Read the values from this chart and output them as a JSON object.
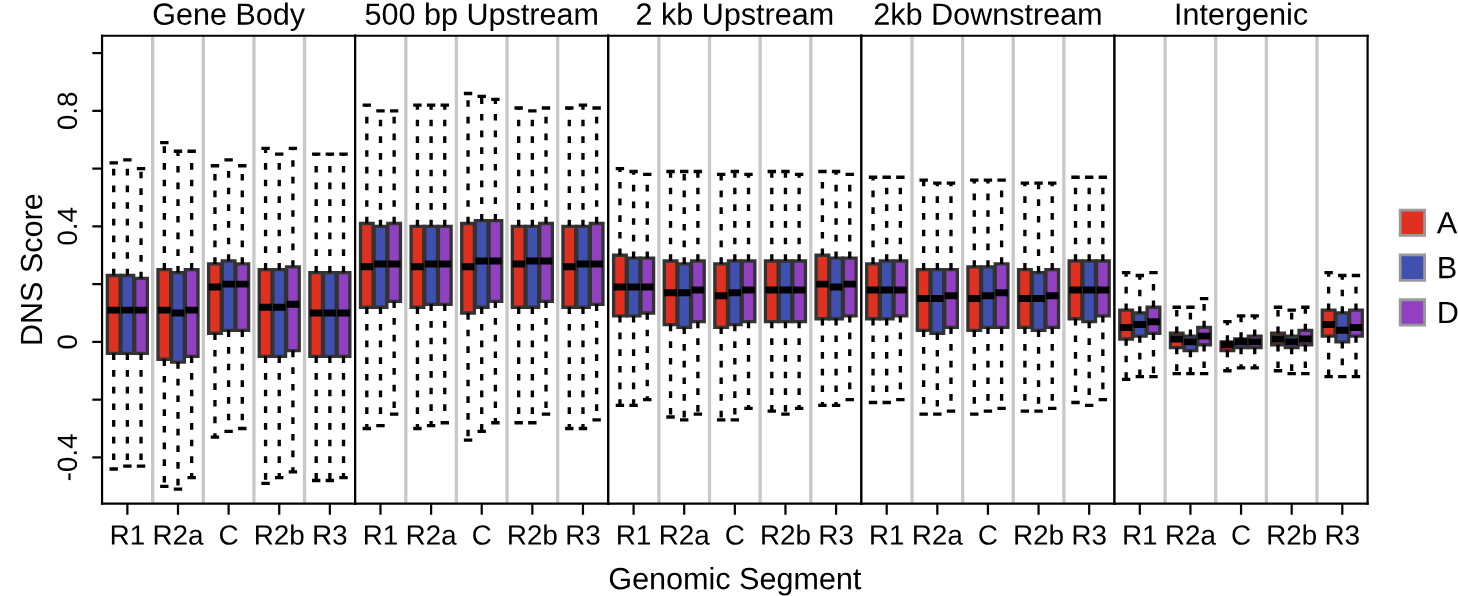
{
  "chart_data": [
    {
      "type": "box",
      "title": "Gene Body",
      "ylabel": "DNS Score",
      "categories": [
        "R1",
        "R2a",
        "C",
        "R2b",
        "R3"
      ],
      "ylim": [
        -0.56,
        1.06
      ],
      "yticks": [
        {
          "value": -0.4,
          "label": "-0.4"
        },
        {
          "value": -0.2,
          "label": null
        },
        0,
        {
          "value": 0.2,
          "label": null
        },
        0.4,
        {
          "value": 0.6,
          "label": null
        },
        0.8,
        {
          "value": 1.0,
          "label": null
        }
      ],
      "series": [
        {
          "color": "#e03020",
          "boxes": [
            {
              "low": -0.44,
              "q1": -0.04,
              "median": 0.11,
              "q3": 0.23,
              "high": 0.62
            },
            {
              "low": -0.5,
              "q1": -0.06,
              "median": 0.11,
              "q3": 0.25,
              "high": 0.69
            },
            {
              "low": -0.33,
              "q1": 0.03,
              "median": 0.19,
              "q3": 0.27,
              "high": 0.61
            },
            {
              "low": -0.49,
              "q1": -0.05,
              "median": 0.12,
              "q3": 0.25,
              "high": 0.67
            },
            {
              "low": -0.48,
              "q1": -0.05,
              "median": 0.1,
              "q3": 0.24,
              "high": 0.65
            }
          ]
        },
        {
          "color": "#4050b0",
          "boxes": [
            {
              "low": -0.43,
              "q1": -0.04,
              "median": 0.11,
              "q3": 0.23,
              "high": 0.63
            },
            {
              "low": -0.51,
              "q1": -0.07,
              "median": 0.1,
              "q3": 0.24,
              "high": 0.66
            },
            {
              "low": -0.31,
              "q1": 0.04,
              "median": 0.2,
              "q3": 0.28,
              "high": 0.63
            },
            {
              "low": -0.47,
              "q1": -0.05,
              "median": 0.12,
              "q3": 0.25,
              "high": 0.65
            },
            {
              "low": -0.48,
              "q1": -0.05,
              "median": 0.1,
              "q3": 0.24,
              "high": 0.65
            }
          ]
        },
        {
          "color": "#9040c0",
          "boxes": [
            {
              "low": -0.43,
              "q1": -0.04,
              "median": 0.11,
              "q3": 0.22,
              "high": 0.6
            },
            {
              "low": -0.47,
              "q1": -0.05,
              "median": 0.11,
              "q3": 0.25,
              "high": 0.66
            },
            {
              "low": -0.3,
              "q1": 0.04,
              "median": 0.2,
              "q3": 0.27,
              "high": 0.61
            },
            {
              "low": -0.45,
              "q1": -0.03,
              "median": 0.13,
              "q3": 0.26,
              "high": 0.67
            },
            {
              "low": -0.47,
              "q1": -0.05,
              "median": 0.1,
              "q3": 0.24,
              "high": 0.65
            }
          ]
        }
      ]
    },
    {
      "type": "box",
      "title": "500 bp Upstream",
      "categories": [
        "R1",
        "R2a",
        "C",
        "R2b",
        "R3"
      ],
      "ylim": [
        -0.56,
        1.06
      ],
      "tick_labels": "x",
      "series": [
        {
          "color": "#e03020",
          "boxes": [
            {
              "low": -0.3,
              "q1": 0.12,
              "median": 0.26,
              "q3": 0.41,
              "high": 0.82
            },
            {
              "low": -0.3,
              "q1": 0.12,
              "median": 0.26,
              "q3": 0.4,
              "high": 0.82
            },
            {
              "low": -0.34,
              "q1": 0.1,
              "median": 0.26,
              "q3": 0.41,
              "high": 0.86
            },
            {
              "low": -0.28,
              "q1": 0.12,
              "median": 0.27,
              "q3": 0.4,
              "high": 0.81
            },
            {
              "low": -0.3,
              "q1": 0.12,
              "median": 0.26,
              "q3": 0.4,
              "high": 0.81
            }
          ]
        },
        {
          "color": "#4050b0",
          "boxes": [
            {
              "low": -0.29,
              "q1": 0.12,
              "median": 0.27,
              "q3": 0.4,
              "high": 0.8
            },
            {
              "low": -0.29,
              "q1": 0.13,
              "median": 0.27,
              "q3": 0.4,
              "high": 0.82
            },
            {
              "low": -0.31,
              "q1": 0.12,
              "median": 0.28,
              "q3": 0.42,
              "high": 0.85
            },
            {
              "low": -0.28,
              "q1": 0.12,
              "median": 0.28,
              "q3": 0.4,
              "high": 0.8
            },
            {
              "low": -0.3,
              "q1": 0.12,
              "median": 0.27,
              "q3": 0.4,
              "high": 0.82
            }
          ]
        },
        {
          "color": "#9040c0",
          "boxes": [
            {
              "low": -0.25,
              "q1": 0.14,
              "median": 0.27,
              "q3": 0.41,
              "high": 0.8
            },
            {
              "low": -0.28,
              "q1": 0.13,
              "median": 0.27,
              "q3": 0.4,
              "high": 0.82
            },
            {
              "low": -0.28,
              "q1": 0.14,
              "median": 0.28,
              "q3": 0.42,
              "high": 0.84
            },
            {
              "low": -0.25,
              "q1": 0.14,
              "median": 0.28,
              "q3": 0.41,
              "high": 0.81
            },
            {
              "low": -0.27,
              "q1": 0.13,
              "median": 0.27,
              "q3": 0.41,
              "high": 0.81
            }
          ]
        }
      ]
    },
    {
      "type": "box",
      "title": "2 kb Upstream",
      "xlabel": "Genomic Segment",
      "categories": [
        "R1",
        "R2a",
        "C",
        "R2b",
        "R3"
      ],
      "ylim": [
        -0.56,
        1.06
      ],
      "tick_labels": "x",
      "series": [
        {
          "color": "#e03020",
          "boxes": [
            {
              "low": -0.22,
              "q1": 0.09,
              "median": 0.19,
              "q3": 0.3,
              "high": 0.6
            },
            {
              "low": -0.26,
              "q1": 0.06,
              "median": 0.17,
              "q3": 0.28,
              "high": 0.59
            },
            {
              "low": -0.27,
              "q1": 0.05,
              "median": 0.16,
              "q3": 0.27,
              "high": 0.58
            },
            {
              "low": -0.24,
              "q1": 0.07,
              "median": 0.18,
              "q3": 0.28,
              "high": 0.59
            },
            {
              "low": -0.22,
              "q1": 0.08,
              "median": 0.2,
              "q3": 0.3,
              "high": 0.59
            }
          ]
        },
        {
          "color": "#4050b0",
          "boxes": [
            {
              "low": -0.22,
              "q1": 0.09,
              "median": 0.19,
              "q3": 0.29,
              "high": 0.59
            },
            {
              "low": -0.27,
              "q1": 0.05,
              "median": 0.17,
              "q3": 0.27,
              "high": 0.59
            },
            {
              "low": -0.27,
              "q1": 0.06,
              "median": 0.17,
              "q3": 0.28,
              "high": 0.59
            },
            {
              "low": -0.25,
              "q1": 0.07,
              "median": 0.18,
              "q3": 0.28,
              "high": 0.59
            },
            {
              "low": -0.22,
              "q1": 0.08,
              "median": 0.19,
              "q3": 0.29,
              "high": 0.59
            }
          ]
        },
        {
          "color": "#9040c0",
          "boxes": [
            {
              "low": -0.2,
              "q1": 0.1,
              "median": 0.19,
              "q3": 0.29,
              "high": 0.58
            },
            {
              "low": -0.25,
              "q1": 0.07,
              "median": 0.18,
              "q3": 0.28,
              "high": 0.59
            },
            {
              "low": -0.23,
              "q1": 0.07,
              "median": 0.18,
              "q3": 0.28,
              "high": 0.58
            },
            {
              "low": -0.23,
              "q1": 0.07,
              "median": 0.18,
              "q3": 0.28,
              "high": 0.58
            },
            {
              "low": -0.2,
              "q1": 0.09,
              "median": 0.2,
              "q3": 0.29,
              "high": 0.58
            }
          ]
        }
      ]
    },
    {
      "type": "box",
      "title": "2kb Downstream",
      "categories": [
        "R1",
        "R2a",
        "C",
        "R2b",
        "R3"
      ],
      "ylim": [
        -0.56,
        1.06
      ],
      "tick_labels": "x",
      "series": [
        {
          "color": "#e03020",
          "boxes": [
            {
              "low": -0.21,
              "q1": 0.08,
              "median": 0.18,
              "q3": 0.27,
              "high": 0.57
            },
            {
              "low": -0.25,
              "q1": 0.04,
              "median": 0.15,
              "q3": 0.25,
              "high": 0.56
            },
            {
              "low": -0.25,
              "q1": 0.04,
              "median": 0.15,
              "q3": 0.26,
              "high": 0.56
            },
            {
              "low": -0.24,
              "q1": 0.05,
              "median": 0.15,
              "q3": 0.25,
              "high": 0.55
            },
            {
              "low": -0.21,
              "q1": 0.08,
              "median": 0.18,
              "q3": 0.28,
              "high": 0.57
            }
          ]
        },
        {
          "color": "#4050b0",
          "boxes": [
            {
              "low": -0.21,
              "q1": 0.08,
              "median": 0.18,
              "q3": 0.28,
              "high": 0.57
            },
            {
              "low": -0.25,
              "q1": 0.03,
              "median": 0.15,
              "q3": 0.25,
              "high": 0.55
            },
            {
              "low": -0.24,
              "q1": 0.05,
              "median": 0.16,
              "q3": 0.26,
              "high": 0.56
            },
            {
              "low": -0.24,
              "q1": 0.04,
              "median": 0.15,
              "q3": 0.24,
              "high": 0.55
            },
            {
              "low": -0.22,
              "q1": 0.07,
              "median": 0.18,
              "q3": 0.28,
              "high": 0.57
            }
          ]
        },
        {
          "color": "#9040c0",
          "boxes": [
            {
              "low": -0.2,
              "q1": 0.09,
              "median": 0.18,
              "q3": 0.28,
              "high": 0.57
            },
            {
              "low": -0.24,
              "q1": 0.05,
              "median": 0.16,
              "q3": 0.25,
              "high": 0.55
            },
            {
              "low": -0.23,
              "q1": 0.05,
              "median": 0.17,
              "q3": 0.27,
              "high": 0.56
            },
            {
              "low": -0.23,
              "q1": 0.05,
              "median": 0.16,
              "q3": 0.25,
              "high": 0.55
            },
            {
              "low": -0.2,
              "q1": 0.09,
              "median": 0.18,
              "q3": 0.28,
              "high": 0.57
            }
          ]
        }
      ]
    },
    {
      "type": "box",
      "title": "Intergenic",
      "categories": [
        "R1",
        "R2a",
        "C",
        "R2b",
        "R3"
      ],
      "ylim": [
        -0.56,
        1.06
      ],
      "tick_labels": "x",
      "legend": "right",
      "series": [
        {
          "name": "A",
          "color": "#e03020",
          "boxes": [
            {
              "low": -0.13,
              "q1": 0.01,
              "median": 0.05,
              "q3": 0.11,
              "high": 0.24
            },
            {
              "low": -0.11,
              "q1": -0.02,
              "median": 0.01,
              "q3": 0.03,
              "high": 0.12
            },
            {
              "low": -0.1,
              "q1": -0.03,
              "median": -0.01,
              "q3": 0.0,
              "high": 0.07
            },
            {
              "low": -0.1,
              "q1": -0.01,
              "median": 0.01,
              "q3": 0.03,
              "high": 0.12
            },
            {
              "low": -0.12,
              "q1": 0.02,
              "median": 0.06,
              "q3": 0.11,
              "high": 0.24
            }
          ]
        },
        {
          "name": "B",
          "color": "#4050b0",
          "boxes": [
            {
              "low": -0.12,
              "q1": 0.02,
              "median": 0.06,
              "q3": 0.1,
              "high": 0.23
            },
            {
              "low": -0.11,
              "q1": -0.03,
              "median": 0.0,
              "q3": 0.02,
              "high": 0.12
            },
            {
              "low": -0.09,
              "q1": -0.02,
              "median": 0.0,
              "q3": 0.01,
              "high": 0.09
            },
            {
              "low": -0.11,
              "q1": -0.02,
              "median": 0.0,
              "q3": 0.02,
              "high": 0.11
            },
            {
              "low": -0.12,
              "q1": 0.0,
              "median": 0.04,
              "q3": 0.1,
              "high": 0.23
            }
          ]
        },
        {
          "name": "D",
          "color": "#9040c0",
          "boxes": [
            {
              "low": -0.12,
              "q1": 0.03,
              "median": 0.07,
              "q3": 0.12,
              "high": 0.24
            },
            {
              "low": -0.11,
              "q1": -0.01,
              "median": 0.02,
              "q3": 0.05,
              "high": 0.15
            },
            {
              "low": -0.09,
              "q1": -0.02,
              "median": 0.0,
              "q3": 0.02,
              "high": 0.09
            },
            {
              "low": -0.11,
              "q1": -0.01,
              "median": 0.01,
              "q3": 0.04,
              "high": 0.12
            },
            {
              "low": -0.12,
              "q1": 0.02,
              "median": 0.05,
              "q3": 0.11,
              "high": 0.23
            }
          ]
        }
      ]
    }
  ]
}
